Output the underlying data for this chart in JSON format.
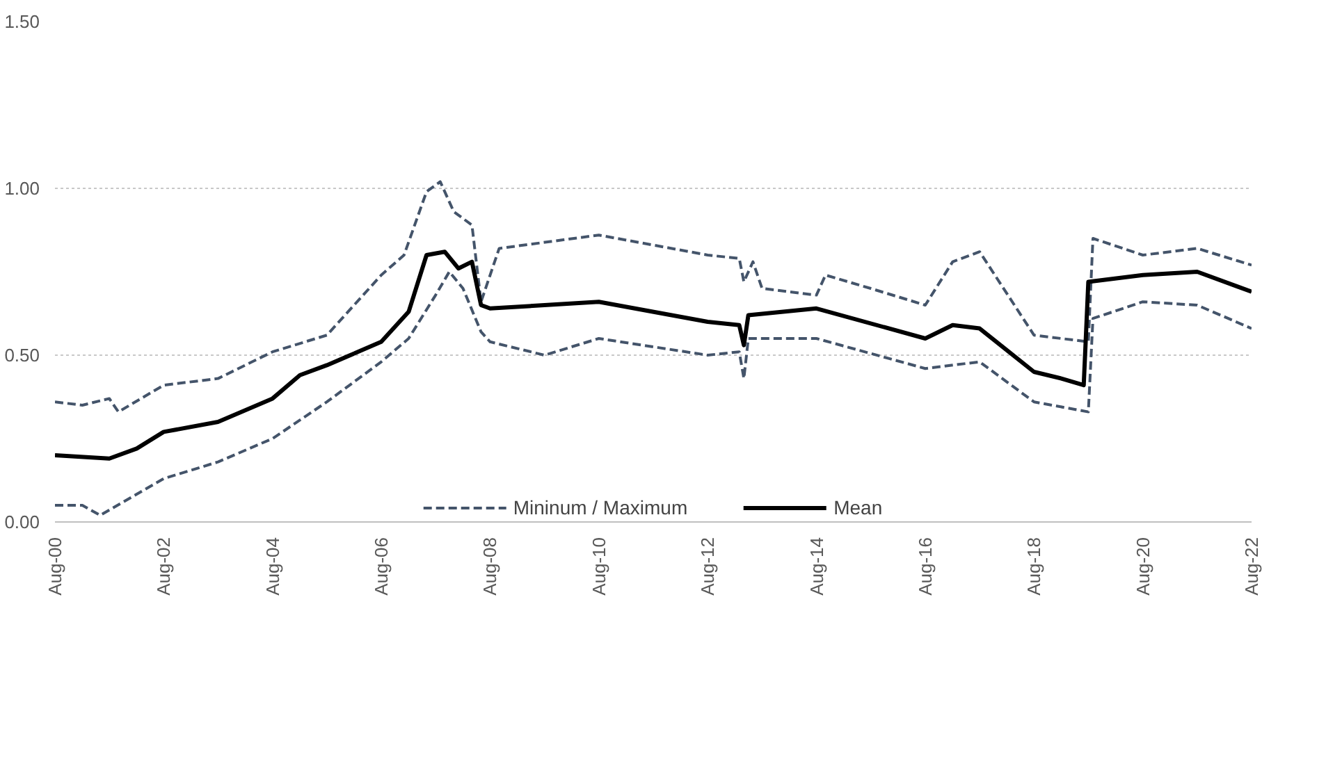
{
  "chart_data": {
    "type": "line",
    "xlim": [
      "2000-08",
      "2022-08"
    ],
    "ylim": [
      0,
      1.5
    ],
    "xticks": [
      {
        "value": "2000-08",
        "label": "Aug-00"
      },
      {
        "value": "2002-08",
        "label": "Aug-02"
      },
      {
        "value": "2004-08",
        "label": "Aug-04"
      },
      {
        "value": "2006-08",
        "label": "Aug-06"
      },
      {
        "value": "2008-08",
        "label": "Aug-08"
      },
      {
        "value": "2010-08",
        "label": "Aug-10"
      },
      {
        "value": "2012-08",
        "label": "Aug-12"
      },
      {
        "value": "2014-08",
        "label": "Aug-14"
      },
      {
        "value": "2016-08",
        "label": "Aug-16"
      },
      {
        "value": "2018-08",
        "label": "Aug-18"
      },
      {
        "value": "2020-08",
        "label": "Aug-20"
      },
      {
        "value": "2022-08",
        "label": "Aug-22"
      }
    ],
    "yticks": [
      {
        "value": 0,
        "label": "0.00"
      },
      {
        "value": 0.5,
        "label": "0.50"
      },
      {
        "value": 1,
        "label": "1.00"
      },
      {
        "value": 1.5,
        "label": "1.50"
      }
    ],
    "grid": "y",
    "legend": "bottom",
    "marker": "none",
    "series": [
      {
        "name": "Mininum / Maximum",
        "color": "#44546a",
        "line_style": "dashed",
        "x": [
          "2000-08",
          "2001-02",
          "2001-06",
          "2002-08",
          "2003-08",
          "2004-08",
          "2005-08",
          "2006-08",
          "2007-02",
          "2007-08",
          "2007-11",
          "2008-02",
          "2008-06",
          "2008-08",
          "2009-08",
          "2010-08",
          "2012-08",
          "2013-03",
          "2013-04",
          "2013-05",
          "2014-08",
          "2016-08",
          "2017-08",
          "2018-08",
          "2019-08",
          "2019-09",
          "2020-08",
          "2021-08",
          "2022-08"
        ],
        "values": [
          0.05,
          0.05,
          0.02,
          0.13,
          0.18,
          0.25,
          0.36,
          0.48,
          0.55,
          0.68,
          0.75,
          0.7,
          0.57,
          0.54,
          0.5,
          0.55,
          0.5,
          0.51,
          0.43,
          0.55,
          0.55,
          0.46,
          0.48,
          0.36,
          0.33,
          0.61,
          0.66,
          0.65,
          0.58
        ]
      },
      {
        "color": "#44546a",
        "line_style": "dashed",
        "x": [
          "2000-08",
          "2001-02",
          "2001-08",
          "2001-10",
          "2002-08",
          "2003-08",
          "2004-08",
          "2005-08",
          "2006-08",
          "2007-01",
          "2007-06",
          "2007-09",
          "2007-12",
          "2008-04",
          "2008-06",
          "2008-10",
          "2010-08",
          "2012-08",
          "2013-03",
          "2013-04",
          "2013-06",
          "2013-08",
          "2014-08",
          "2014-10",
          "2015-08",
          "2016-08",
          "2017-02",
          "2017-08",
          "2018-08",
          "2019-08",
          "2019-09",
          "2020-08",
          "2021-08",
          "2022-08"
        ],
        "values": [
          0.36,
          0.35,
          0.37,
          0.33,
          0.41,
          0.43,
          0.51,
          0.56,
          0.74,
          0.8,
          0.99,
          1.02,
          0.93,
          0.89,
          0.66,
          0.82,
          0.86,
          0.8,
          0.79,
          0.72,
          0.78,
          0.7,
          0.68,
          0.74,
          0.7,
          0.65,
          0.78,
          0.81,
          0.56,
          0.54,
          0.85,
          0.8,
          0.82,
          0.77
        ]
      },
      {
        "name": "Mean",
        "color": "#000000",
        "line_style": "solid",
        "x": [
          "2000-08",
          "2001-08",
          "2002-02",
          "2002-08",
          "2003-08",
          "2004-08",
          "2005-02",
          "2005-08",
          "2006-08",
          "2007-02",
          "2007-06",
          "2007-10",
          "2008-01",
          "2008-04",
          "2008-06",
          "2008-08",
          "2010-08",
          "2012-08",
          "2013-03",
          "2013-04",
          "2013-05",
          "2014-08",
          "2016-08",
          "2017-02",
          "2017-08",
          "2018-08",
          "2019-02",
          "2019-07",
          "2019-08",
          "2020-08",
          "2021-08",
          "2022-08"
        ],
        "values": [
          0.2,
          0.19,
          0.22,
          0.27,
          0.3,
          0.37,
          0.44,
          0.47,
          0.54,
          0.63,
          0.8,
          0.81,
          0.76,
          0.78,
          0.65,
          0.64,
          0.66,
          0.6,
          0.59,
          0.53,
          0.62,
          0.64,
          0.55,
          0.59,
          0.58,
          0.45,
          0.43,
          0.41,
          0.72,
          0.74,
          0.75,
          0.69
        ]
      }
    ]
  }
}
